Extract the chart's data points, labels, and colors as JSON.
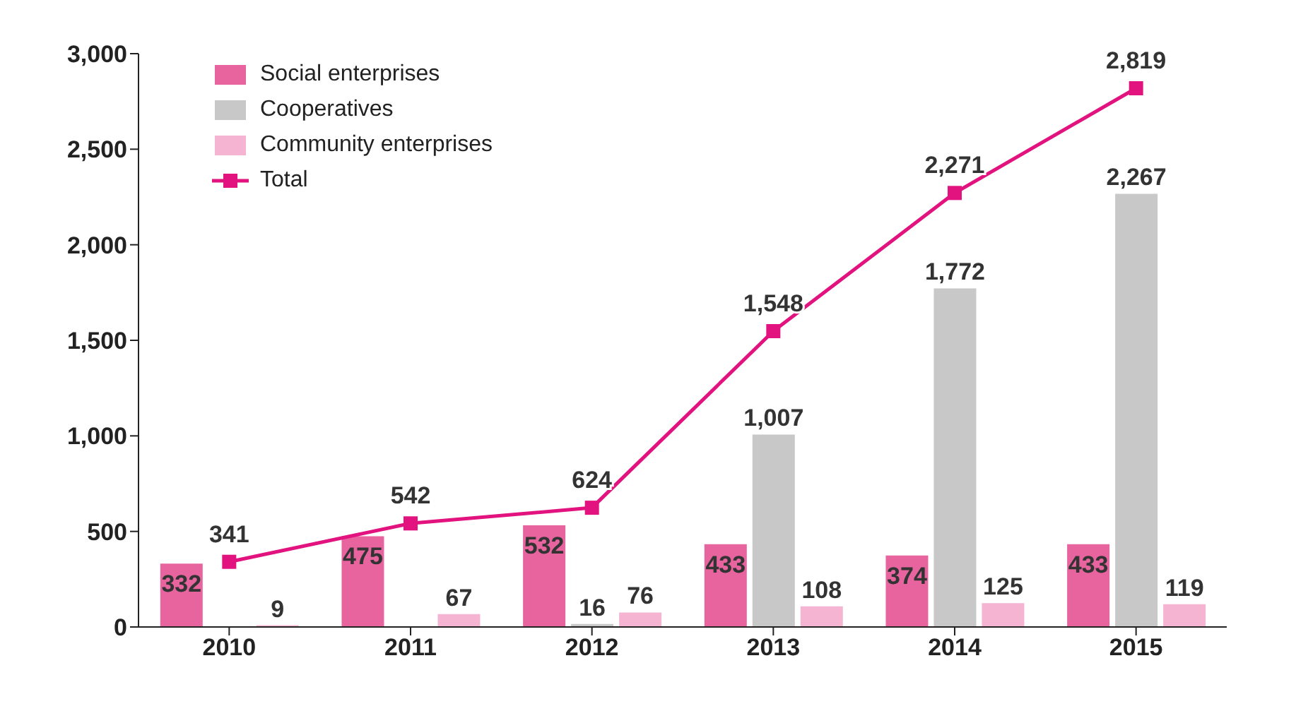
{
  "chart_data": {
    "type": "bar",
    "categories": [
      "2010",
      "2011",
      "2012",
      "2013",
      "2014",
      "2015"
    ],
    "series": [
      {
        "name": "Social enterprises",
        "color": "#e8649f",
        "values": [
          332,
          475,
          532,
          433,
          374,
          433
        ],
        "value_labels": [
          "332",
          "475",
          "532",
          "433",
          "374",
          "433"
        ]
      },
      {
        "name": "Cooperatives",
        "color": "#c8c8c8",
        "values": [
          0,
          0,
          16,
          1007,
          1772,
          2267
        ],
        "value_labels": [
          null,
          null,
          "16",
          "1,007",
          "1,772",
          "2,267"
        ]
      },
      {
        "name": "Community enterprises",
        "color": "#f5b5d2",
        "values": [
          9,
          67,
          76,
          108,
          125,
          119
        ],
        "value_labels": [
          "9",
          "67",
          "76",
          "108",
          "125",
          "119"
        ]
      },
      {
        "name": "Total",
        "type": "line",
        "color": "#e2127f",
        "marker": "square",
        "values": [
          341,
          542,
          624,
          1548,
          2271,
          2819
        ],
        "value_labels": [
          "341",
          "542",
          "624",
          "1,548",
          "2,271",
          "2,819"
        ]
      }
    ],
    "ylim": [
      0,
      3000
    ],
    "yticks": [
      {
        "value": 0,
        "label": "0"
      },
      {
        "value": 500,
        "label": "500"
      },
      {
        "value": 1000,
        "label": "1,000"
      },
      {
        "value": 1500,
        "label": "1,500"
      },
      {
        "value": 2000,
        "label": "2,000"
      },
      {
        "value": 2500,
        "label": "2,500"
      },
      {
        "value": 3000,
        "label": "3,000"
      }
    ],
    "grid": false,
    "legend": "top left"
  }
}
